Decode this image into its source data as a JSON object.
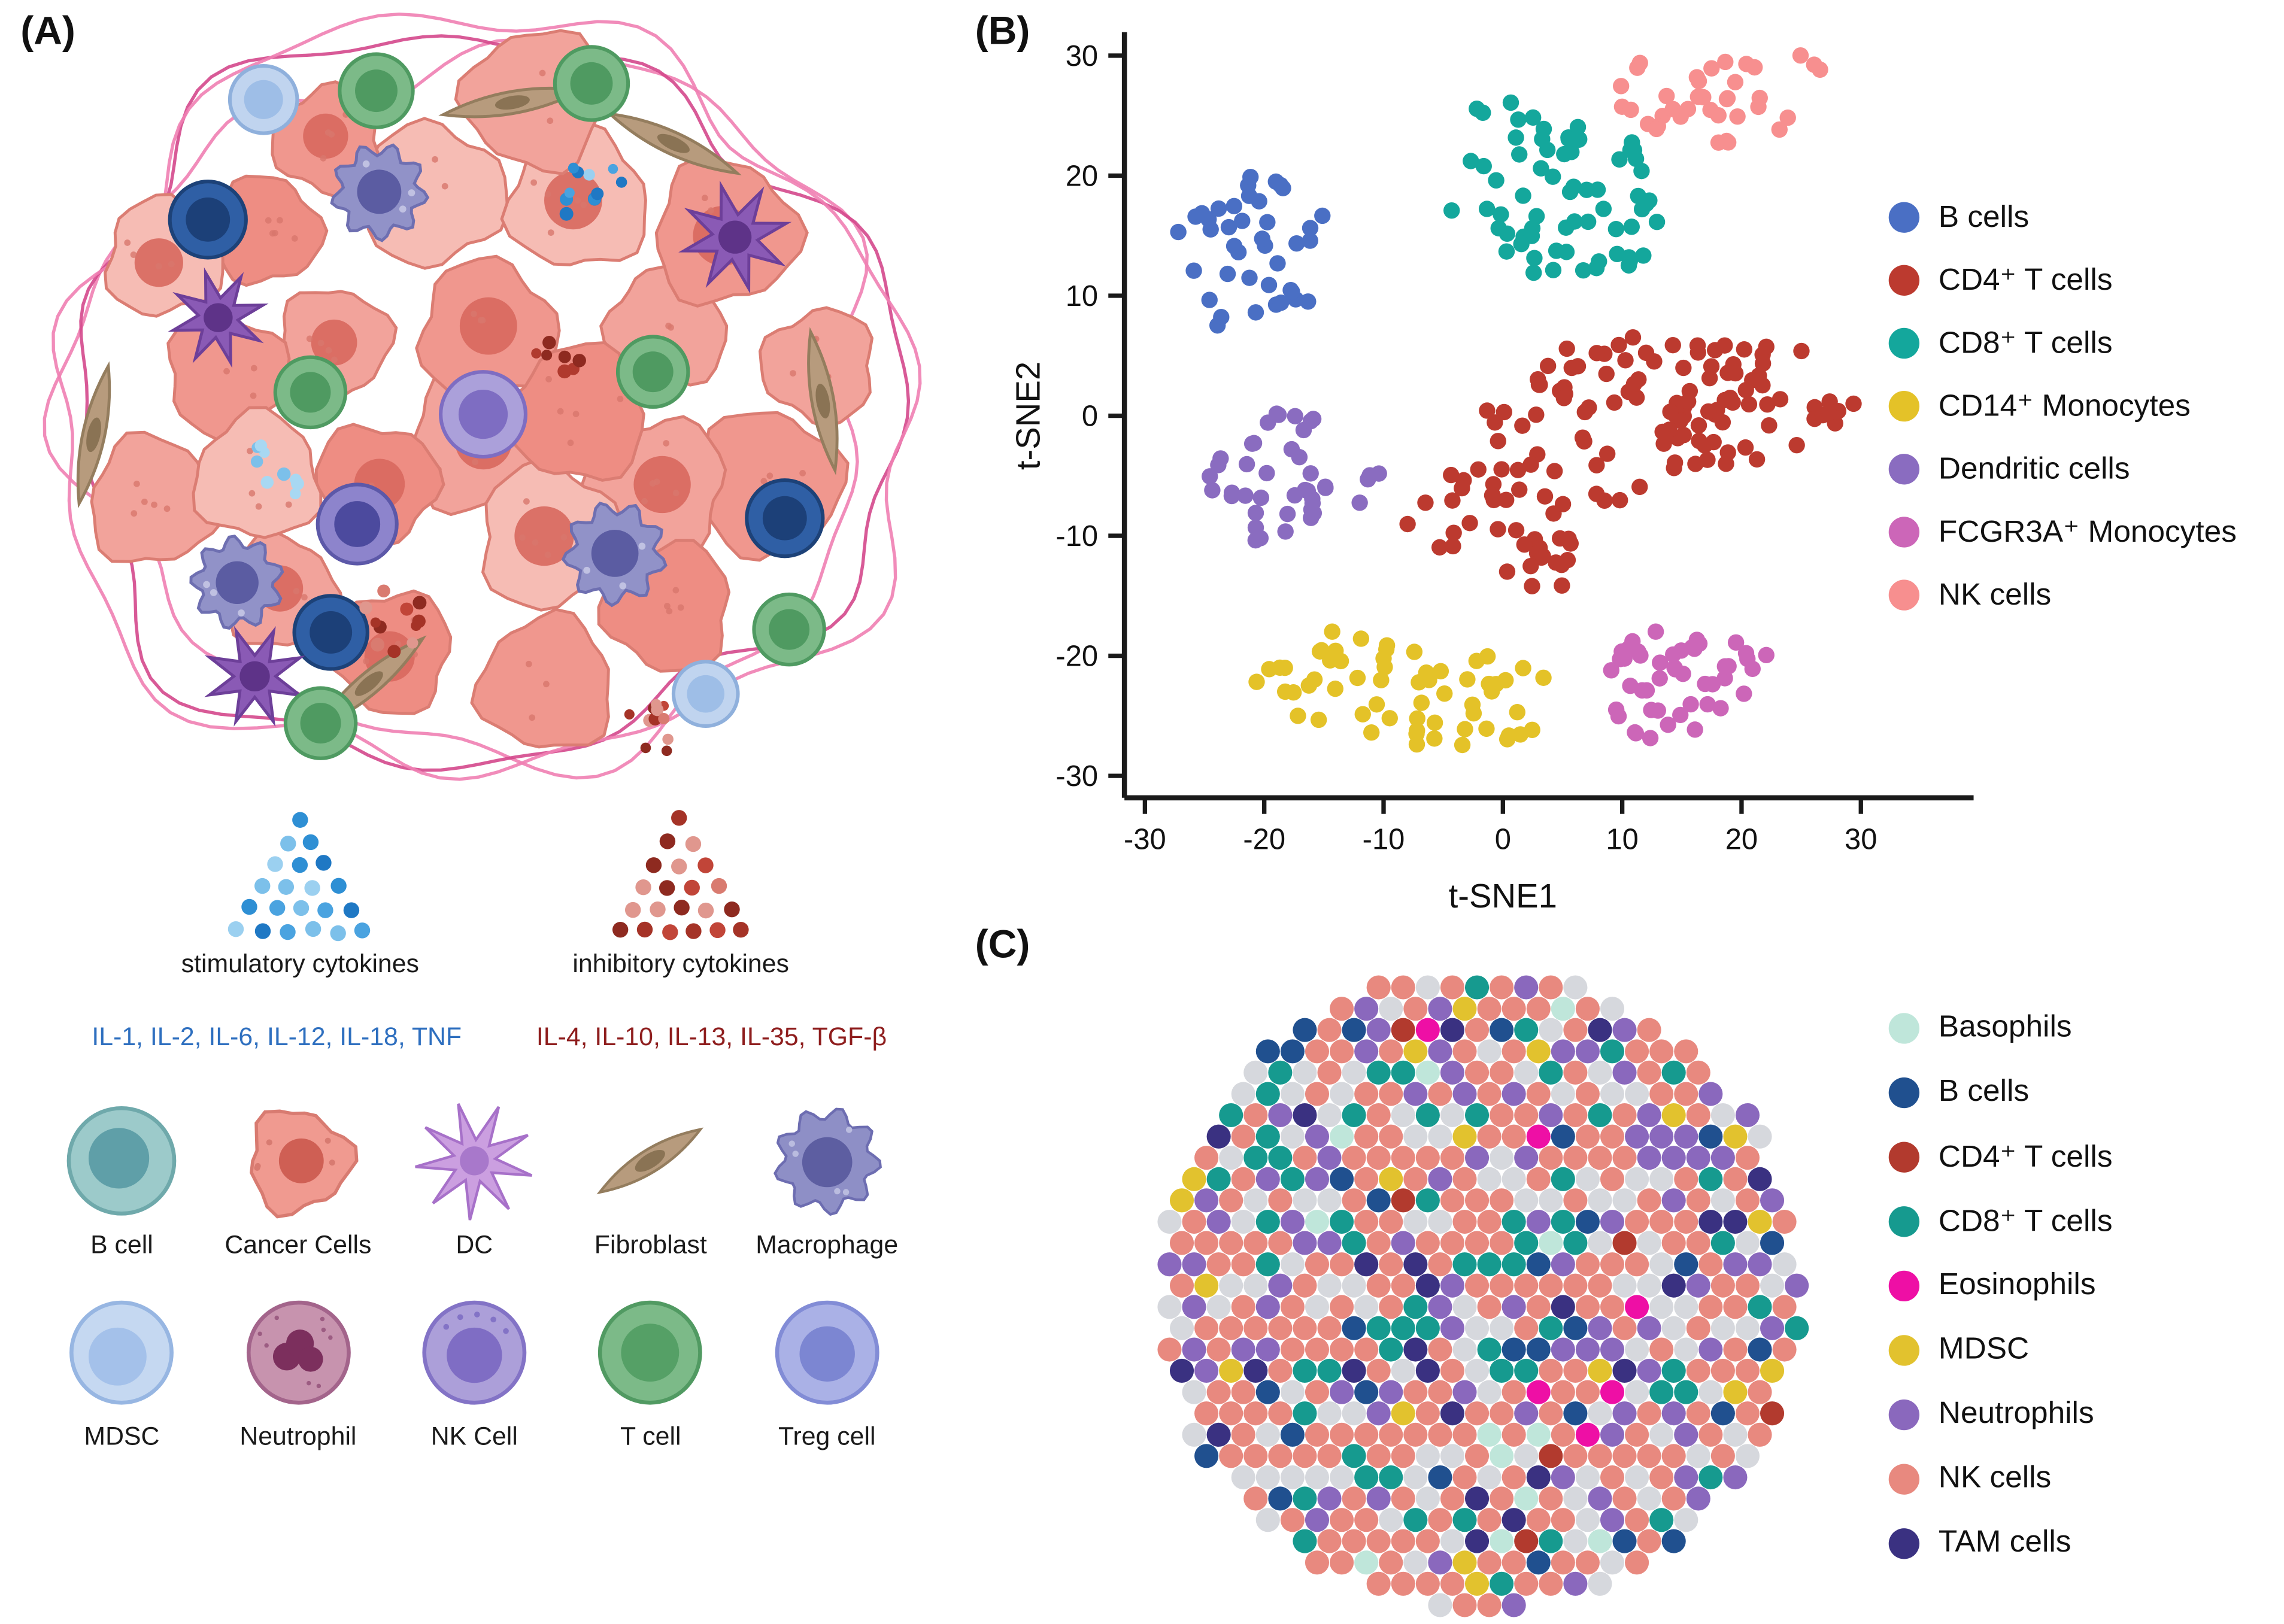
{
  "panels": {
    "a": {
      "label": "(A)"
    },
    "b": {
      "label": "(B)"
    },
    "c": {
      "label": "(C)"
    }
  },
  "panel_a": {
    "stimulatory_label": "stimulatory cytokines",
    "inhibitory_label": "inhibitory cytokines",
    "stimulatory_cytokines": "IL-1, IL-2, IL-6, IL-12, IL-18, TNF",
    "inhibitory_cytokines": "IL-4, IL-10, IL-13, IL-35, TGF-β",
    "stimulatory_text_color": "#2e6fbf",
    "inhibitory_text_color": "#8e1d1d",
    "stimulatory_dot_colors": [
      "#4aa3e0",
      "#1f78c4",
      "#7cc0ea",
      "#2e8fd4",
      "#9bd0f0"
    ],
    "inhibitory_dot_colors": [
      "#c14538",
      "#8e2a20",
      "#d97b70",
      "#a53327",
      "#e0978e"
    ],
    "cell_legend": [
      {
        "id": "b-cell",
        "label": "B cell"
      },
      {
        "id": "cancer-cells",
        "label": "Cancer Cells"
      },
      {
        "id": "dc",
        "label": "DC"
      },
      {
        "id": "fibroblast",
        "label": "Fibroblast"
      },
      {
        "id": "macrophage",
        "label": "Macrophage"
      },
      {
        "id": "mdsc",
        "label": "MDSC"
      },
      {
        "id": "neutrophil",
        "label": "Neutrophil"
      },
      {
        "id": "nk-cell",
        "label": "NK Cell"
      },
      {
        "id": "t-cell",
        "label": "T cell"
      },
      {
        "id": "treg-cell",
        "label": "Treg cell"
      }
    ]
  },
  "chart_data": [
    {
      "id": "tsne",
      "type": "scatter",
      "title": "",
      "xlabel": "t-SNE1",
      "ylabel": "t-SNE2",
      "xlim": [
        -32,
        36
      ],
      "ylim": [
        -32,
        32
      ],
      "xticks": [
        -30,
        -20,
        -10,
        0,
        10,
        20,
        30
      ],
      "yticks": [
        30,
        20,
        10,
        0,
        -10,
        -20,
        -30
      ],
      "grid": false,
      "legend_position": "right",
      "point_radius_px": 5.6,
      "series": [
        {
          "name": "B cells",
          "color": "#4a6fc4",
          "clusters": [
            {
              "center": [
                -21,
                14
              ],
              "spread": [
                7,
                6
              ],
              "count": 40
            }
          ]
        },
        {
          "name": "CD4⁺ T cells",
          "color": "#bc3a2f",
          "clusters": [
            {
              "center": [
                11,
                0
              ],
              "spread": [
                13,
                6.5
              ],
              "count": 80
            },
            {
              "center": [
                21,
                0.5
              ],
              "spread": [
                7.5,
                5
              ],
              "count": 30
            },
            {
              "center": [
                -1,
                -8.5
              ],
              "spread": [
                6.5,
                5
              ],
              "count": 28
            },
            {
              "center": [
                3,
                -12
              ],
              "spread": [
                4,
                3
              ],
              "count": 12
            }
          ]
        },
        {
          "name": "CD8⁺ T cells",
          "color": "#14a79c",
          "clusters": [
            {
              "center": [
                4,
                18.5
              ],
              "spread": [
                9,
                7.5
              ],
              "count": 68
            }
          ]
        },
        {
          "name": "CD14⁺ Monocytes",
          "color": "#e4c228",
          "clusters": [
            {
              "center": [
                -7.5,
                -23
              ],
              "spread": [
                12,
                5.2
              ],
              "count": 60
            }
          ]
        },
        {
          "name": "Dendritic cells",
          "color": "#8a6cc0",
          "clusters": [
            {
              "center": [
                -17,
                -4.5
              ],
              "spread": [
                7.5,
                5.5
              ],
              "count": 42
            }
          ]
        },
        {
          "name": "FCGR3A⁺ Monocytes",
          "color": "#cc66b8",
          "clusters": [
            {
              "center": [
                15,
                -22.3
              ],
              "spread": [
                7,
                5.2
              ],
              "count": 48
            }
          ]
        },
        {
          "name": "NK cells",
          "color": "#f78f8f",
          "clusters": [
            {
              "center": [
                16.5,
                26
              ],
              "spread": [
                6.8,
                4.6
              ],
              "count": 34
            },
            {
              "center": [
                26,
                29.5
              ],
              "spread": [
                2,
                1.3
              ],
              "count": 3
            }
          ]
        }
      ]
    },
    {
      "id": "cell-map",
      "type": "packed-dots",
      "shape": "circle",
      "legend_position": "right",
      "categories": [
        {
          "name": "Basophils",
          "color": "#bfe6da",
          "weight": 0.02
        },
        {
          "name": "B cells",
          "color": "#20508f",
          "weight": 0.04
        },
        {
          "name": "CD4⁺ T cells",
          "color": "#b23a2e",
          "weight": 0.012
        },
        {
          "name": "CD8⁺ T cells",
          "color": "#169a8f",
          "weight": 0.11
        },
        {
          "name": "Eosinophils",
          "color": "#ee0fa5",
          "weight": 0.012
        },
        {
          "name": "MDSC",
          "color": "#e2c22e",
          "weight": 0.028
        },
        {
          "name": "Neutrophils",
          "color": "#8a68bd",
          "weight": 0.17
        },
        {
          "name": "NK cells",
          "color": "#e8897f",
          "weight": 0.37
        },
        {
          "name": "TAM cells",
          "color": "#3a3181",
          "weight": 0.048
        }
      ],
      "unlabeled": {
        "color": "#d6d8dd",
        "weight": 0.19
      }
    }
  ]
}
